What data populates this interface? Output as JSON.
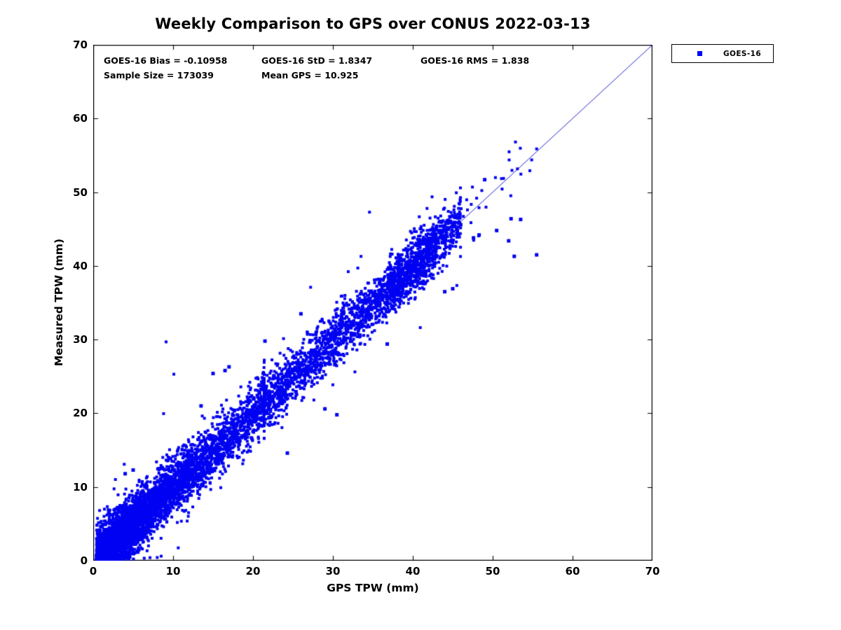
{
  "title": "Weekly Comparison to GPS over CONUS 2022-03-13",
  "annotations": {
    "bias": "GOES-16 Bias = -0.10958",
    "std": "GOES-16 StD = 1.8347",
    "rms": "GOES-16 RMS = 1.838",
    "sample_size": "Sample Size = 173039",
    "mean_gps": "Mean GPS = 10.925"
  },
  "legend": {
    "label": "GOES-16",
    "marker_color": "#0000FF"
  },
  "chart_data": {
    "type": "scatter",
    "title": "Weekly Comparison to GPS over CONUS 2022-03-13",
    "xlabel": "GPS TPW (mm)",
    "ylabel": "Measured TPW (mm)",
    "xlim": [
      0,
      70
    ],
    "ylim": [
      0,
      70
    ],
    "x_ticks": [
      0,
      10,
      20,
      30,
      40,
      50,
      60,
      70
    ],
    "y_ticks": [
      0,
      10,
      20,
      30,
      40,
      50,
      60,
      70
    ],
    "grid": false,
    "legend_position": "outside-top-right",
    "ref_line": {
      "from": [
        0,
        0
      ],
      "to": [
        70,
        70
      ],
      "color": "#2222CC",
      "width": 1
    },
    "series": [
      {
        "name": "GOES-16",
        "marker": "square",
        "color": "#0000F2",
        "stats": {
          "bias": -0.10958,
          "std": 1.8347,
          "rms": 1.838,
          "sample_size": 173039,
          "mean_gps": 10.925
        },
        "x_range": [
          0.2,
          55.5
        ],
        "relationship": "y = x + bias with gaussian spread sigma = std",
        "outliers": [
          [
            49.0,
            51.7
          ],
          [
            52.3,
            46.4
          ],
          [
            53.5,
            46.3
          ],
          [
            50.5,
            44.8
          ],
          [
            52.0,
            43.4
          ],
          [
            55.5,
            41.5
          ],
          [
            52.7,
            41.3
          ],
          [
            47.6,
            43.8
          ],
          [
            46.0,
            45.6
          ],
          [
            45.2,
            45.9
          ],
          [
            44.3,
            46.1
          ],
          [
            43.8,
            45.4
          ],
          [
            48.3,
            44.2
          ],
          [
            30.5,
            19.8
          ],
          [
            29.0,
            20.6
          ],
          [
            24.3,
            14.6
          ],
          [
            16.5,
            25.8
          ],
          [
            15.0,
            25.4
          ],
          [
            17.0,
            26.3
          ],
          [
            36.8,
            29.4
          ],
          [
            44.0,
            36.5
          ],
          [
            45.0,
            36.9
          ],
          [
            5.0,
            12.3
          ],
          [
            4.0,
            11.8
          ],
          [
            21.5,
            29.8
          ],
          [
            26.0,
            33.5
          ],
          [
            13.5,
            21.0
          ]
        ]
      }
    ],
    "rendered_points": 7000,
    "seed": 42
  }
}
